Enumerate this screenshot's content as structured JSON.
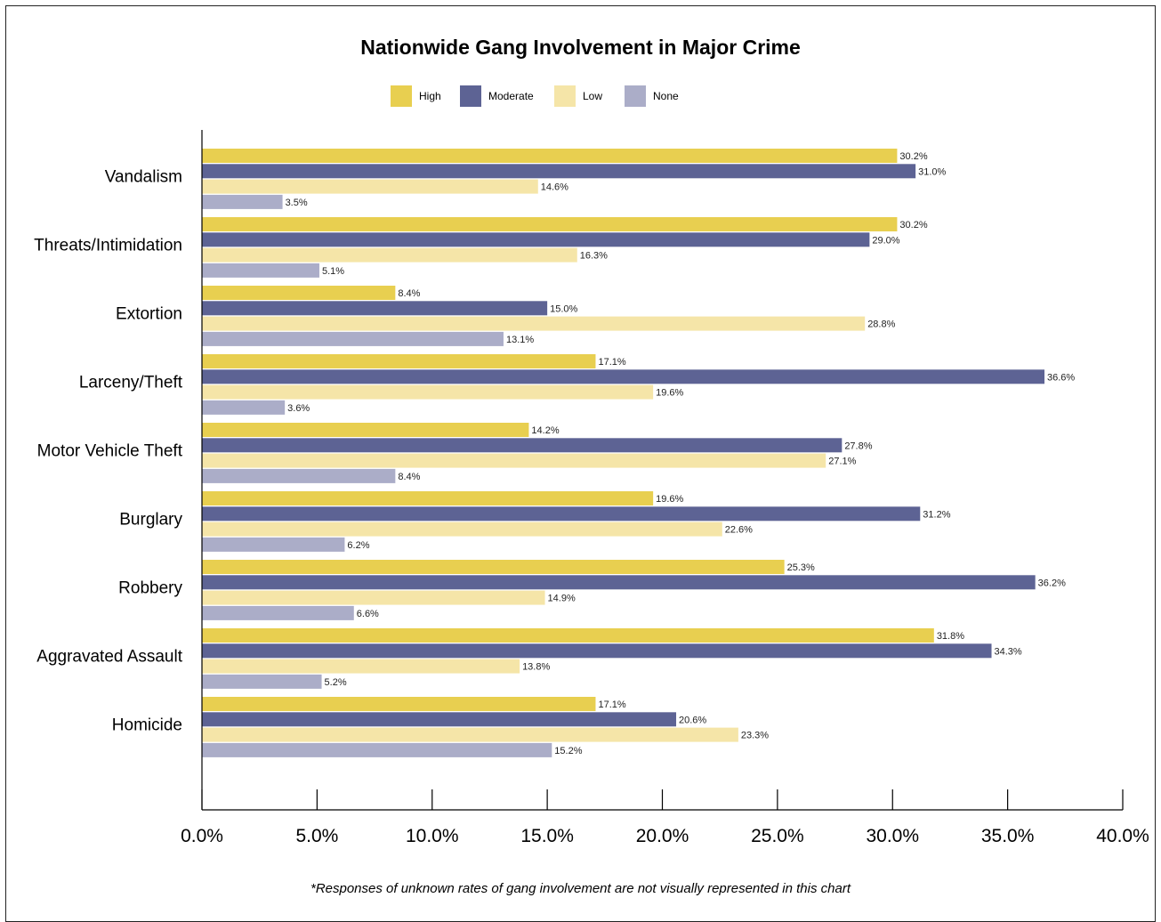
{
  "colors": {
    "High": "#e8cf50",
    "Moderate": "#5d6394",
    "Low": "#f5e5a8",
    "None": "#abadc8"
  },
  "legend": [
    {
      "name": "High"
    },
    {
      "name": "Moderate"
    },
    {
      "name": "Low"
    },
    {
      "name": "None"
    }
  ],
  "note": "*Responses of unknown rates of gang involvement are not visually represented in this chart",
  "chart_data": {
    "type": "bar",
    "orientation": "horizontal",
    "title": "Nationwide Gang Involvement in Major Crime",
    "xlabel": "",
    "ylabel": "",
    "xlim": [
      0,
      40
    ],
    "x_ticks": [
      "0.0%",
      "5.0%",
      "10.0%",
      "15.0%",
      "20.0%",
      "25.0%",
      "30.0%",
      "35.0%",
      "40.0%"
    ],
    "legend_position": "top-center",
    "grid": false,
    "categories": [
      "Vandalism",
      "Threats/Intimidation",
      "Extortion",
      "Larceny/Theft",
      "Motor Vehicle Theft",
      "Burglary",
      "Robbery",
      "Aggravated Assault",
      "Homicide"
    ],
    "series": [
      {
        "name": "High",
        "values": [
          30.2,
          30.2,
          8.4,
          17.1,
          14.2,
          19.6,
          25.3,
          31.8,
          17.1
        ],
        "labels": [
          "30.2%",
          "30.2%",
          "8.4%",
          "17.1%",
          "14.2%",
          "19.6%",
          "25.3%",
          "31.8%",
          "17.1%"
        ]
      },
      {
        "name": "Moderate",
        "values": [
          31.0,
          29.0,
          15.0,
          36.6,
          27.8,
          31.2,
          36.2,
          34.3,
          20.6
        ],
        "labels": [
          "31.0%",
          "29.0%",
          "15.0%",
          "36.6%",
          "27.8%",
          "31.2%",
          "36.2%",
          "34.3%",
          "20.6%"
        ]
      },
      {
        "name": "Low",
        "values": [
          14.6,
          16.3,
          28.8,
          19.6,
          27.1,
          22.6,
          14.9,
          13.8,
          23.3
        ],
        "labels": [
          "14.6%",
          "16.3%",
          "28.8%",
          "19.6%",
          "27.1%",
          "22.6%",
          "14.9%",
          "13.8%",
          "23.3%"
        ]
      },
      {
        "name": "None",
        "values": [
          3.5,
          5.1,
          13.1,
          3.6,
          8.4,
          6.2,
          6.6,
          5.2,
          15.2
        ],
        "labels": [
          "3.5%",
          "5.1%",
          "13.1%",
          "3.6%",
          "8.4%",
          "6.2%",
          "6.6%",
          "5.2%",
          "15.2%"
        ]
      }
    ]
  }
}
